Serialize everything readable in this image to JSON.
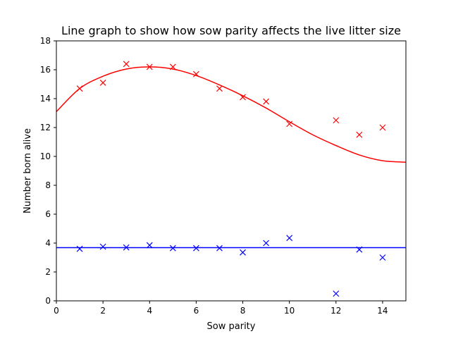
{
  "chart_data": {
    "type": "scatter",
    "title": "Line graph to show how sow parity affects the live litter size",
    "xlabel": "Sow parity",
    "ylabel": "Number born alive",
    "xlim": [
      0,
      15
    ],
    "ylim": [
      0,
      18
    ],
    "xticks": [
      0,
      2,
      4,
      6,
      8,
      10,
      12,
      14
    ],
    "yticks": [
      0,
      2,
      4,
      6,
      8,
      10,
      12,
      14,
      16,
      18
    ],
    "grid": false,
    "series": [
      {
        "color": "#ff0000",
        "marker": "x",
        "points": [
          [
            1,
            14.7
          ],
          [
            2,
            15.1
          ],
          [
            3,
            16.4
          ],
          [
            4,
            16.2
          ],
          [
            5,
            16.2
          ],
          [
            6,
            15.7
          ],
          [
            7,
            14.7
          ],
          [
            8,
            14.1
          ],
          [
            9,
            13.8
          ],
          [
            10,
            12.25
          ],
          [
            12,
            12.5
          ],
          [
            13,
            11.5
          ],
          [
            14,
            12.0
          ]
        ],
        "fit": {
          "kind": "curve",
          "points": [
            [
              0,
              13.1
            ],
            [
              1,
              14.7
            ],
            [
              2,
              15.55
            ],
            [
              3,
              16.05
            ],
            [
              4,
              16.2
            ],
            [
              5,
              16.05
            ],
            [
              6,
              15.6
            ],
            [
              7,
              14.95
            ],
            [
              8,
              14.2
            ],
            [
              9,
              13.35
            ],
            [
              10,
              12.4
            ],
            [
              11,
              11.5
            ],
            [
              12,
              10.75
            ],
            [
              13,
              10.1
            ],
            [
              14,
              9.7
            ],
            [
              15,
              9.6
            ]
          ]
        }
      },
      {
        "color": "#0000ff",
        "marker": "x",
        "points": [
          [
            1,
            3.6
          ],
          [
            2,
            3.75
          ],
          [
            3,
            3.7
          ],
          [
            4,
            3.85
          ],
          [
            5,
            3.65
          ],
          [
            6,
            3.65
          ],
          [
            7,
            3.65
          ],
          [
            8,
            3.35
          ],
          [
            9,
            4.0
          ],
          [
            10,
            4.35
          ],
          [
            12,
            0.5
          ],
          [
            13,
            3.55
          ],
          [
            14,
            3.0
          ]
        ],
        "fit": {
          "kind": "horizontal",
          "y": 3.68
        }
      }
    ]
  }
}
